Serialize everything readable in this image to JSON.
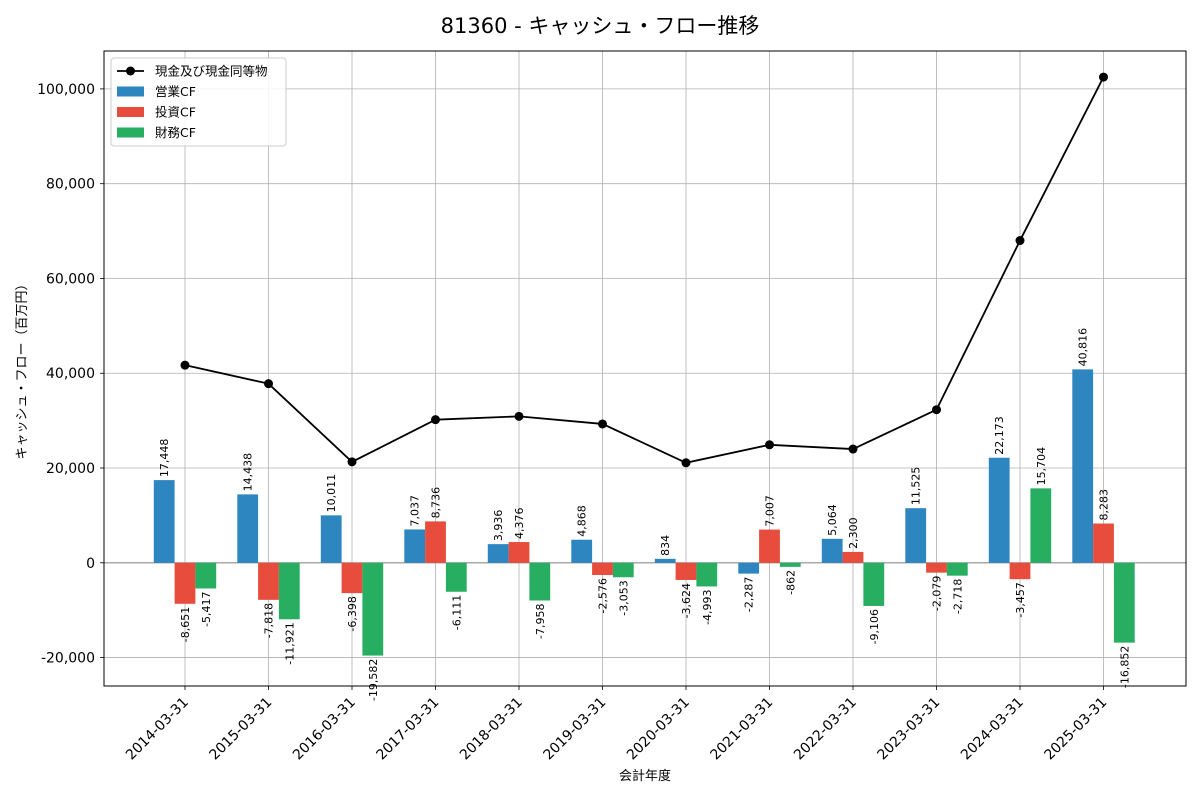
{
  "chart_data": {
    "type": "bar+line",
    "title": "81360 - キャッシュ・フロー推移",
    "xlabel": "会計年度",
    "ylabel": "キャッシュ・フロー（百万円）",
    "ylim": [
      -26000,
      108000
    ],
    "yticks": [
      -20000,
      0,
      20000,
      40000,
      60000,
      80000,
      100000
    ],
    "ytick_labels": [
      "-20,000",
      "0",
      "20,000",
      "40,000",
      "60,000",
      "80,000",
      "100,000"
    ],
    "grid": true,
    "legend_position": "top-left",
    "categories": [
      "2014-03-31",
      "2015-03-31",
      "2016-03-31",
      "2017-03-31",
      "2018-03-31",
      "2019-03-31",
      "2020-03-31",
      "2021-03-31",
      "2022-03-31",
      "2023-03-31",
      "2024-03-31",
      "2025-03-31"
    ],
    "series": [
      {
        "name": "営業CF",
        "type": "bar",
        "color": "#2e86c1",
        "values": [
          17448,
          14438,
          10011,
          7037,
          3936,
          4868,
          834,
          -2287,
          5064,
          11525,
          22173,
          40816
        ],
        "labels": [
          "17,448",
          "14,438",
          "10,011",
          "7,037",
          "3,936",
          "4,868",
          "834",
          "-2,287",
          "5,064",
          "11,525",
          "22,173",
          "40,816"
        ]
      },
      {
        "name": "投資CF",
        "type": "bar",
        "color": "#e74c3c",
        "values": [
          -8651,
          -7818,
          -6398,
          8736,
          4376,
          -2576,
          -3624,
          7007,
          2300,
          -2079,
          -3457,
          8283
        ],
        "labels": [
          "-8,651",
          "-7,818",
          "-6,398",
          "8,736",
          "4,376",
          "-2,576",
          "-3,624",
          "7,007",
          "2,300",
          "-2,079",
          "-3,457",
          "8,283"
        ]
      },
      {
        "name": "財務CF",
        "type": "bar",
        "color": "#27ae60",
        "values": [
          -5417,
          -11921,
          -19582,
          -6111,
          -7958,
          -3053,
          -4993,
          -862,
          -9106,
          -2718,
          15704,
          -16852
        ],
        "labels": [
          "-5,417",
          "-11,921",
          "-19,582",
          "-6,111",
          "-7,958",
          "-3,053",
          "-4,993",
          "-862",
          "-9,106",
          "-2,718",
          "15,704",
          "-16,852"
        ]
      },
      {
        "name": "現金及び現金同等物",
        "type": "line",
        "color": "#000000",
        "values": [
          41700,
          37800,
          21300,
          30200,
          30900,
          29300,
          21100,
          24900,
          24000,
          32300,
          68000,
          102500
        ]
      }
    ]
  }
}
